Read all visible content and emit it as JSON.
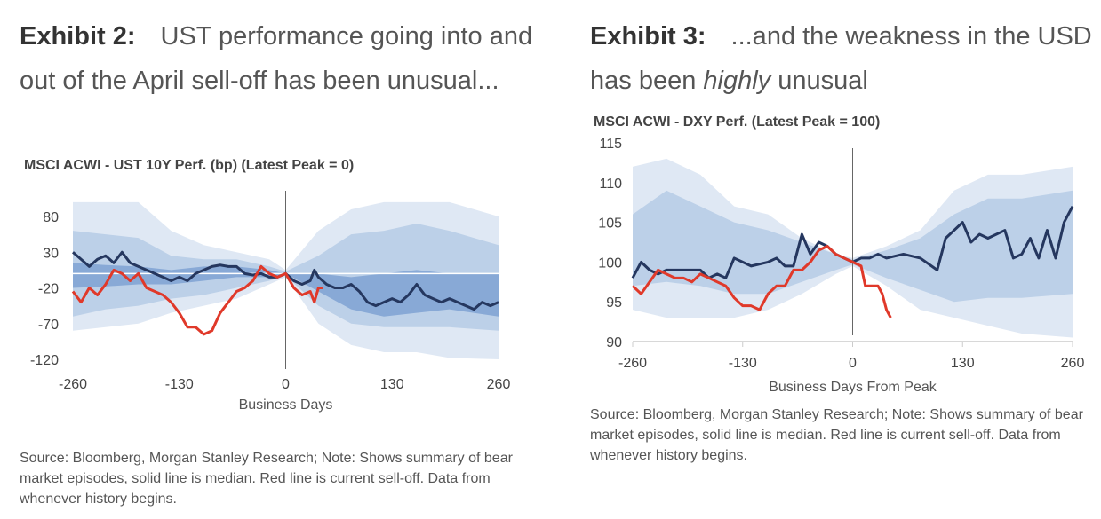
{
  "exhibit2": {
    "label": "Exhibit 2:",
    "title": "UST performance going into and out of the April sell-off has been unusual...",
    "chart_title": "MSCI ACWI - UST 10Y Perf. (bp) (Latest Peak = 0)",
    "source": "Source: Bloomberg, Morgan Stanley Research; Note: Shows summary of bear market episodes, solid line is median. Red line is current sell-off. Data from whenever history begins."
  },
  "exhibit3": {
    "label": "Exhibit 3:",
    "title_pre": "...and the weakness in the USD has been ",
    "title_em": "highly",
    "title_post": " unusual",
    "chart_title": "MSCI ACWI - DXY Perf. (Latest Peak = 100)",
    "source": "Source: Bloomberg, Morgan Stanley Research; Note: Shows summary of bear market episodes, solid line is median. Red line is current sell-off. Data from whenever history begins."
  },
  "colors": {
    "outer": "#dfe8f4",
    "mid": "#bcd0e8",
    "inner": "#88a9d6",
    "median": "#25375f",
    "current": "#e0392a"
  },
  "chart_data": [
    {
      "type": "area",
      "title": "MSCI ACWI - UST 10Y Perf. (bp) (Latest Peak = 0)",
      "xlabel": "Business Days",
      "ylabel": "",
      "xlim": [
        -260,
        260
      ],
      "ylim": [
        -120,
        100
      ],
      "xticks": [
        -260,
        -130,
        0,
        130,
        260
      ],
      "yticks": [
        80,
        30,
        -20,
        -70,
        -120
      ],
      "band_x": [
        -260,
        -220,
        -180,
        -140,
        -100,
        -60,
        -20,
        0,
        40,
        80,
        120,
        160,
        200,
        260
      ],
      "bands": [
        {
          "name": "outer",
          "upper": [
            100,
            100,
            100,
            60,
            40,
            30,
            20,
            5,
            60,
            90,
            100,
            100,
            100,
            80
          ],
          "lower": [
            -80,
            -75,
            -70,
            -55,
            -45,
            -35,
            -15,
            -5,
            -70,
            -100,
            -110,
            -110,
            -118,
            -120
          ]
        },
        {
          "name": "mid",
          "upper": [
            60,
            55,
            50,
            25,
            20,
            20,
            10,
            3,
            25,
            55,
            60,
            70,
            60,
            40
          ],
          "lower": [
            -60,
            -50,
            -45,
            -35,
            -30,
            -20,
            -10,
            -3,
            -45,
            -70,
            -75,
            -75,
            -75,
            -80
          ]
        },
        {
          "name": "inner",
          "upper": [
            15,
            12,
            10,
            5,
            10,
            10,
            5,
            0,
            0,
            -5,
            0,
            5,
            0,
            0
          ],
          "lower": [
            -20,
            -18,
            -15,
            -15,
            -10,
            -5,
            -5,
            0,
            -25,
            -50,
            -60,
            -55,
            -50,
            -60
          ]
        }
      ],
      "series": [
        {
          "name": "Median",
          "x": [
            -260,
            -250,
            -240,
            -230,
            -220,
            -210,
            -200,
            -190,
            -180,
            -170,
            -160,
            -150,
            -140,
            -130,
            -120,
            -110,
            -100,
            -90,
            -80,
            -70,
            -60,
            -50,
            -40,
            -30,
            -20,
            -10,
            0,
            10,
            20,
            30,
            35,
            40,
            50,
            60,
            70,
            80,
            90,
            100,
            110,
            120,
            130,
            140,
            150,
            160,
            170,
            180,
            190,
            200,
            210,
            220,
            230,
            240,
            250,
            260
          ],
          "y": [
            30,
            20,
            10,
            20,
            25,
            15,
            30,
            15,
            10,
            5,
            0,
            -5,
            -10,
            -5,
            -10,
            0,
            5,
            10,
            12,
            10,
            10,
            0,
            -2,
            0,
            -5,
            -5,
            0,
            -10,
            -15,
            -10,
            5,
            -5,
            -15,
            -20,
            -20,
            -15,
            -25,
            -40,
            -45,
            -40,
            -35,
            -40,
            -30,
            -15,
            -30,
            -35,
            -40,
            -35,
            -40,
            -45,
            -50,
            -40,
            -45,
            -40
          ]
        },
        {
          "name": "Current",
          "x": [
            -260,
            -250,
            -240,
            -230,
            -220,
            -210,
            -200,
            -190,
            -180,
            -170,
            -160,
            -150,
            -140,
            -130,
            -120,
            -110,
            -100,
            -90,
            -80,
            -70,
            -60,
            -50,
            -40,
            -30,
            -20,
            -10,
            0,
            10,
            20,
            30,
            35,
            40,
            45
          ],
          "y": [
            -25,
            -40,
            -20,
            -30,
            -15,
            5,
            0,
            -10,
            0,
            -20,
            -25,
            -30,
            -40,
            -55,
            -75,
            -75,
            -85,
            -80,
            -55,
            -40,
            -25,
            -20,
            -10,
            10,
            0,
            -5,
            0,
            -20,
            -30,
            -25,
            -40,
            -20,
            -20
          ]
        }
      ]
    },
    {
      "type": "area",
      "title": "MSCI ACWI - DXY Perf. (Latest Peak = 100)",
      "xlabel": "Business Days From Peak",
      "ylabel": "",
      "xlim": [
        -260,
        260
      ],
      "ylim": [
        90,
        115
      ],
      "xticks": [
        -260,
        -130,
        0,
        130,
        260
      ],
      "yticks": [
        115,
        110,
        105,
        100,
        95,
        90
      ],
      "band_x": [
        -260,
        -220,
        -180,
        -140,
        -100,
        -60,
        -20,
        0,
        40,
        80,
        120,
        160,
        200,
        260
      ],
      "bands": [
        {
          "name": "outer",
          "upper": [
            112,
            113,
            111,
            107,
            106,
            103,
            101,
            100.5,
            102,
            104,
            109,
            111,
            111,
            112
          ],
          "lower": [
            94,
            93,
            93,
            93,
            94,
            96,
            98.5,
            99.5,
            97,
            94,
            93,
            92,
            91,
            90.5
          ]
        },
        {
          "name": "mid",
          "upper": [
            106,
            109,
            107,
            105,
            104,
            102.5,
            101,
            100.3,
            101.5,
            103,
            106,
            108,
            108,
            109
          ],
          "lower": [
            97,
            97.5,
            97,
            96,
            96,
            97.5,
            99,
            99.7,
            98,
            96.5,
            95,
            95.5,
            95.5,
            96
          ]
        }
      ],
      "series": [
        {
          "name": "Median",
          "x": [
            -260,
            -250,
            -240,
            -230,
            -220,
            -200,
            -180,
            -170,
            -160,
            -150,
            -140,
            -130,
            -120,
            -100,
            -90,
            -80,
            -70,
            -60,
            -50,
            -40,
            -30,
            -20,
            -10,
            0,
            10,
            20,
            30,
            40,
            60,
            80,
            100,
            110,
            120,
            130,
            140,
            150,
            160,
            180,
            190,
            200,
            210,
            220,
            230,
            240,
            250,
            260
          ],
          "y": [
            98,
            100,
            99,
            98.5,
            99,
            99,
            99,
            98,
            98.5,
            98,
            100.5,
            100,
            99.5,
            100,
            100.5,
            99.5,
            99.5,
            103.5,
            101,
            102.5,
            102,
            101,
            100.5,
            100,
            100.5,
            100.5,
            101,
            100.5,
            101,
            100.5,
            99,
            103,
            104,
            105,
            102.5,
            103.5,
            103,
            104,
            100.5,
            101,
            103,
            100.5,
            104,
            100.5,
            105,
            107
          ]
        },
        {
          "name": "Current",
          "x": [
            -260,
            -250,
            -240,
            -230,
            -220,
            -210,
            -200,
            -190,
            -180,
            -170,
            -160,
            -150,
            -140,
            -130,
            -120,
            -110,
            -100,
            -90,
            -80,
            -70,
            -60,
            -50,
            -40,
            -30,
            -20,
            -10,
            0,
            10,
            15,
            20,
            30,
            35,
            40,
            45
          ],
          "y": [
            97,
            96,
            97.5,
            99,
            98.5,
            98,
            98,
            97.5,
            98.5,
            98,
            97.5,
            97,
            95.5,
            94.5,
            94.5,
            94,
            96,
            97,
            97,
            99,
            99,
            100,
            101.5,
            102,
            101,
            100.5,
            100,
            99.5,
            97,
            97,
            97,
            96,
            94,
            93
          ]
        }
      ]
    }
  ]
}
